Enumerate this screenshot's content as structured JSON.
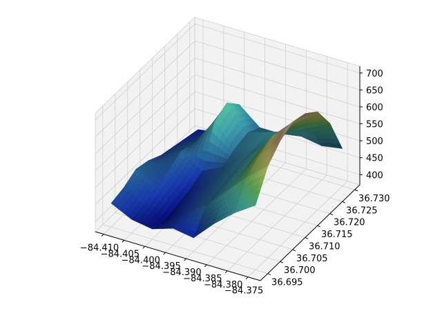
{
  "chart_data": {
    "type": "surface3d",
    "title": "",
    "xlabel": "",
    "ylabel": "",
    "zlabel": "",
    "colormap": "gist_earth",
    "shading": "lightsource",
    "grid": true,
    "pane_color": "#f2f2f2",
    "gridline_color": "#d0d0d0",
    "xlim": [
      -84.412,
      -84.372
    ],
    "ylim": [
      36.692,
      36.732
    ],
    "zlim": [
      370,
      720
    ],
    "x_ticks": [
      -84.41,
      -84.405,
      -84.4,
      -84.395,
      -84.39,
      -84.385,
      -84.38,
      -84.375
    ],
    "x_tick_labels": [
      "−84.410",
      "−84.405",
      "−84.400",
      "−84.395",
      "−84.390",
      "−84.385",
      "−84.380",
      "−84.375"
    ],
    "y_ticks": [
      36.695,
      36.7,
      36.705,
      36.71,
      36.715,
      36.72,
      36.725,
      36.73
    ],
    "y_tick_labels": [
      "36.695",
      "36.700",
      "36.705",
      "36.710",
      "36.715",
      "36.720",
      "36.725",
      "36.730"
    ],
    "z_ticks": [
      400,
      450,
      500,
      550,
      600,
      650,
      700
    ],
    "z_tick_labels": [
      "400",
      "450",
      "500",
      "550",
      "600",
      "650",
      "700"
    ],
    "x": [
      -84.41,
      -84.405,
      -84.4,
      -84.395,
      -84.39,
      -84.385,
      -84.38,
      -84.375
    ],
    "y": [
      36.695,
      36.7,
      36.705,
      36.71,
      36.715,
      36.72,
      36.725,
      36.73
    ],
    "z": [
      [
        440,
        410,
        400,
        420,
        410,
        470,
        520,
        560
      ],
      [
        450,
        420,
        390,
        430,
        470,
        530,
        590,
        640
      ],
      [
        470,
        440,
        400,
        440,
        480,
        540,
        620,
        680
      ],
      [
        460,
        450,
        410,
        450,
        490,
        550,
        640,
        700
      ],
      [
        440,
        470,
        430,
        460,
        500,
        560,
        630,
        690
      ],
      [
        430,
        460,
        540,
        480,
        500,
        540,
        610,
        660
      ],
      [
        420,
        440,
        560,
        490,
        510,
        530,
        560,
        590
      ],
      [
        410,
        420,
        520,
        470,
        470,
        480,
        470,
        480
      ]
    ]
  }
}
